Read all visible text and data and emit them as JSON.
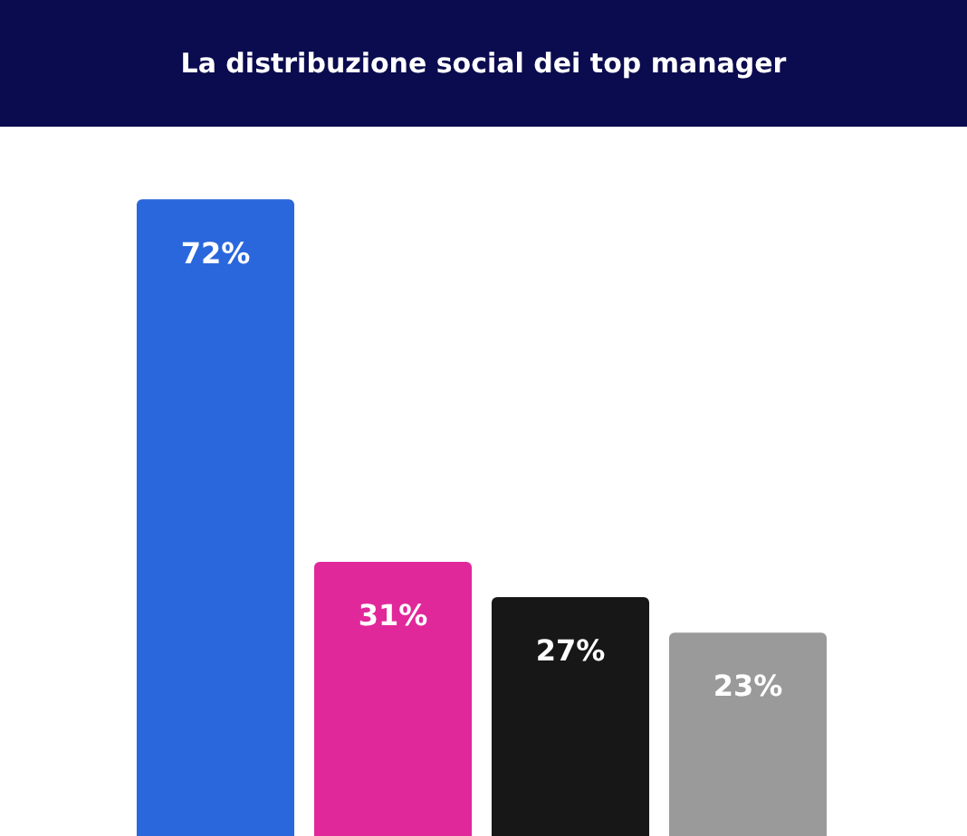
{
  "chart_data": {
    "type": "bar",
    "title": "La distribuzione social dei top manager",
    "categories": [
      null,
      null,
      null,
      null
    ],
    "values": [
      72,
      31,
      27,
      23
    ],
    "value_labels": [
      "72%",
      "31%",
      "27%",
      "23%"
    ],
    "colors": [
      "#2a67dc",
      "#e0289a",
      "#171717",
      "#9a9a9a"
    ],
    "legend": false
  }
}
